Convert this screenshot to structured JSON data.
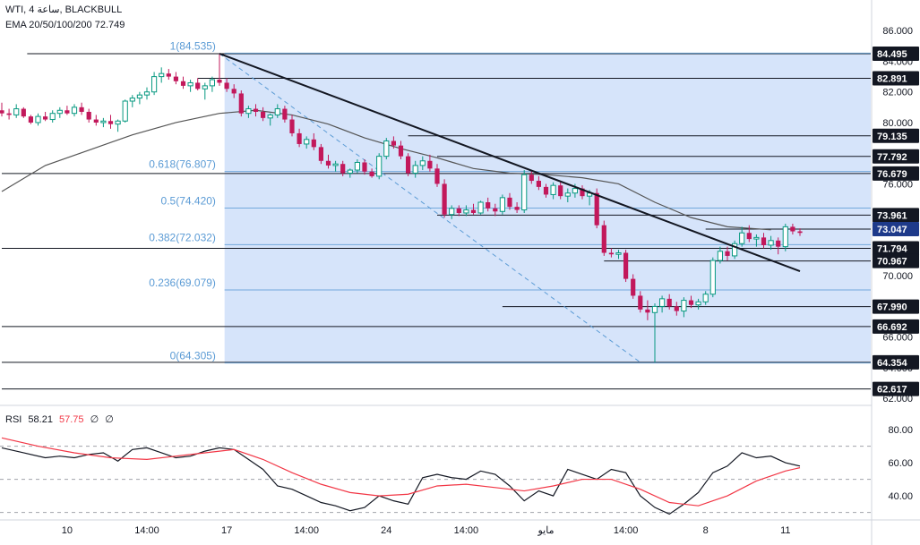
{
  "header": {
    "symbol": "WTI",
    "interval": "4",
    "interval_unit": "ساعة",
    "broker": "BLACKBULL",
    "ema_label": "EMA 20/50/100/200",
    "ema_value": "72.749"
  },
  "rsi_header": {
    "label": "RSI",
    "value1": "58.21",
    "value2": "57.75",
    "value3": "∅",
    "value4": "∅"
  },
  "colors": {
    "up": "#089981",
    "down": "#c2185b",
    "fib_zone": "#d6e4fa",
    "fib_text": "#5b9bd5",
    "trendline": "#131722",
    "ema": "#555555",
    "rsi_line": "#131722",
    "rsi_signal": "#f23645",
    "grid_label": "#131722"
  },
  "chart_data": [
    {
      "type": "candlestick",
      "title": "",
      "ylim": [
        61.6,
        88.0
      ],
      "price_ticks": [
        "86.000",
        "84.000",
        "82.000",
        "80.000",
        "78.000",
        "76.000",
        "74.000",
        "72.000",
        "70.000",
        "68.000",
        "66.000",
        "64.000",
        "62.000"
      ],
      "x_ticks": [
        {
          "label": "10",
          "t": 9
        },
        {
          "label": "14:00",
          "t": 20
        },
        {
          "label": "17",
          "t": 31
        },
        {
          "label": "14:00",
          "t": 42
        },
        {
          "label": "24",
          "t": 53
        },
        {
          "label": "14:00",
          "t": 64
        },
        {
          "label": "مايو",
          "t": 75
        },
        {
          "label": "14:00",
          "t": 86
        },
        {
          "label": "8",
          "t": 97
        },
        {
          "label": "11",
          "t": 108
        }
      ],
      "price_levels": [
        {
          "value": 84.495,
          "label": "84.495"
        },
        {
          "value": 82.891,
          "label": "82.891"
        },
        {
          "value": 79.135,
          "label": "79.135"
        },
        {
          "value": 77.792,
          "label": "77.792"
        },
        {
          "value": 76.679,
          "label": "76.679"
        },
        {
          "value": 73.961,
          "label": "73.961"
        },
        {
          "value": 73.047,
          "label": "73.047",
          "highlight": true
        },
        {
          "value": 71.794,
          "label": "71.794"
        },
        {
          "value": 70.967,
          "label": "70.967"
        },
        {
          "value": 67.99,
          "label": "67.990"
        },
        {
          "value": 66.692,
          "label": "66.692"
        },
        {
          "value": 64.354,
          "label": "64.354"
        },
        {
          "value": 62.617,
          "label": "62.617"
        }
      ],
      "fibonacci": [
        {
          "ratio": "1",
          "price": 84.535,
          "label": "1(84.535)"
        },
        {
          "ratio": "0.618",
          "price": 76.807,
          "label": "0.618(76.807)"
        },
        {
          "ratio": "0.5",
          "price": 74.42,
          "label": "0.5(74.420)"
        },
        {
          "ratio": "0.382",
          "price": 72.032,
          "label": "0.382(72.032)"
        },
        {
          "ratio": "0.236",
          "price": 69.079,
          "label": "0.236(69.079)"
        },
        {
          "ratio": "0",
          "price": 64.305,
          "label": "0(64.305)"
        }
      ],
      "trendline": {
        "from": {
          "t": 30,
          "price": 84.5
        },
        "to": {
          "t": 110,
          "price": 70.3
        }
      },
      "fib_diagonal": {
        "from": {
          "t": 30,
          "price": 84.5
        },
        "to": {
          "t": 88,
          "price": 64.35
        }
      },
      "ema_series": [
        [
          0,
          75.5
        ],
        [
          6,
          77.2
        ],
        [
          12,
          78.2
        ],
        [
          18,
          79.2
        ],
        [
          24,
          80.0
        ],
        [
          30,
          80.6
        ],
        [
          35,
          80.8
        ],
        [
          40,
          80.5
        ],
        [
          45,
          79.9
        ],
        [
          50,
          79.0
        ],
        [
          55,
          78.3
        ],
        [
          60,
          77.7
        ],
        [
          65,
          77.0
        ],
        [
          70,
          76.7
        ],
        [
          75,
          76.6
        ],
        [
          80,
          76.4
        ],
        [
          85,
          76.0
        ],
        [
          90,
          74.8
        ],
        [
          95,
          73.8
        ],
        [
          100,
          73.2
        ],
        [
          106,
          73.0
        ]
      ],
      "candles": [
        [
          80.8,
          81.3,
          80.4,
          80.6
        ],
        [
          80.6,
          80.9,
          80.2,
          80.5
        ],
        [
          80.5,
          81.2,
          80.3,
          80.9
        ],
        [
          80.9,
          81.0,
          80.3,
          80.4
        ],
        [
          80.4,
          80.5,
          79.9,
          80.0
        ],
        [
          80.0,
          80.6,
          79.8,
          80.4
        ],
        [
          80.4,
          80.7,
          80.1,
          80.2
        ],
        [
          80.2,
          80.8,
          80.0,
          80.6
        ],
        [
          80.6,
          81.0,
          80.3,
          80.8
        ],
        [
          80.8,
          81.1,
          80.5,
          80.6
        ],
        [
          80.6,
          81.2,
          80.4,
          81.0
        ],
        [
          81.0,
          81.3,
          80.5,
          80.7
        ],
        [
          80.7,
          80.9,
          80.0,
          80.2
        ],
        [
          80.2,
          80.5,
          79.8,
          80.0
        ],
        [
          80.0,
          80.3,
          79.7,
          80.1
        ],
        [
          80.1,
          80.5,
          79.6,
          79.9
        ],
        [
          79.9,
          80.2,
          79.4,
          80.1
        ],
        [
          80.1,
          81.5,
          80.0,
          81.4
        ],
        [
          81.4,
          81.8,
          81.0,
          81.6
        ],
        [
          81.6,
          82.0,
          81.2,
          81.8
        ],
        [
          81.8,
          82.3,
          81.5,
          82.0
        ],
        [
          82.0,
          83.3,
          81.8,
          83.0
        ],
        [
          83.0,
          83.6,
          82.6,
          83.2
        ],
        [
          83.2,
          83.5,
          82.8,
          83.0
        ],
        [
          83.0,
          83.3,
          82.5,
          82.7
        ],
        [
          82.7,
          83.0,
          82.2,
          82.4
        ],
        [
          82.4,
          82.8,
          82.0,
          82.6
        ],
        [
          82.6,
          82.9,
          82.1,
          82.2
        ],
        [
          82.2,
          82.6,
          81.5,
          82.4
        ],
        [
          82.4,
          83.0,
          82.0,
          82.8
        ],
        [
          82.8,
          84.5,
          82.4,
          82.6
        ],
        [
          82.6,
          82.9,
          82.0,
          82.2
        ],
        [
          82.2,
          82.5,
          81.6,
          81.9
        ],
        [
          81.9,
          82.1,
          80.4,
          80.6
        ],
        [
          80.6,
          81.1,
          80.3,
          80.9
        ],
        [
          80.9,
          81.2,
          80.4,
          80.7
        ],
        [
          80.7,
          81.0,
          80.1,
          80.3
        ],
        [
          80.3,
          80.6,
          79.8,
          80.5
        ],
        [
          80.5,
          81.2,
          80.3,
          80.9
        ],
        [
          80.9,
          81.1,
          80.0,
          80.2
        ],
        [
          80.2,
          80.5,
          79.1,
          79.3
        ],
        [
          79.3,
          79.6,
          78.4,
          78.6
        ],
        [
          78.6,
          79.1,
          78.3,
          78.9
        ],
        [
          78.9,
          79.3,
          78.2,
          78.4
        ],
        [
          78.4,
          78.6,
          77.3,
          77.5
        ],
        [
          77.5,
          77.9,
          77.0,
          77.2
        ],
        [
          77.2,
          77.5,
          76.8,
          77.3
        ],
        [
          77.3,
          77.5,
          76.5,
          76.7
        ],
        [
          76.7,
          77.0,
          76.4,
          76.9
        ],
        [
          76.9,
          77.6,
          76.7,
          77.4
        ],
        [
          77.4,
          77.6,
          76.6,
          76.8
        ],
        [
          76.8,
          77.0,
          76.4,
          76.5
        ],
        [
          76.5,
          78.0,
          76.3,
          77.8
        ],
        [
          77.8,
          79.0,
          77.6,
          78.8
        ],
        [
          78.8,
          79.1,
          78.3,
          78.5
        ],
        [
          78.5,
          78.8,
          77.6,
          77.8
        ],
        [
          77.8,
          78.0,
          76.5,
          76.7
        ],
        [
          76.7,
          77.5,
          76.4,
          77.2
        ],
        [
          77.2,
          77.8,
          76.9,
          77.5
        ],
        [
          77.5,
          77.9,
          76.8,
          77.0
        ],
        [
          77.0,
          77.3,
          75.8,
          76.0
        ],
        [
          76.0,
          76.3,
          73.8,
          74.0
        ],
        [
          74.0,
          74.6,
          73.7,
          74.4
        ],
        [
          74.4,
          74.6,
          73.9,
          74.1
        ],
        [
          74.1,
          74.6,
          73.9,
          74.3
        ],
        [
          74.3,
          74.7,
          74.0,
          74.1
        ],
        [
          74.1,
          74.9,
          74.0,
          74.8
        ],
        [
          74.8,
          75.1,
          74.2,
          74.4
        ],
        [
          74.4,
          74.7,
          73.9,
          74.2
        ],
        [
          74.2,
          75.3,
          74.0,
          75.1
        ],
        [
          75.1,
          75.4,
          74.3,
          74.5
        ],
        [
          74.5,
          74.8,
          74.1,
          74.3
        ],
        [
          74.3,
          76.9,
          74.1,
          76.6
        ],
        [
          76.6,
          76.9,
          76.0,
          76.2
        ],
        [
          76.2,
          76.5,
          75.6,
          75.8
        ],
        [
          75.8,
          76.0,
          75.1,
          75.3
        ],
        [
          75.3,
          76.1,
          75.0,
          75.9
        ],
        [
          75.9,
          76.2,
          75.0,
          75.2
        ],
        [
          75.2,
          75.7,
          74.8,
          75.4
        ],
        [
          75.4,
          76.0,
          75.1,
          75.7
        ],
        [
          75.7,
          75.9,
          75.0,
          75.2
        ],
        [
          75.2,
          75.6,
          74.6,
          75.4
        ],
        [
          75.4,
          75.7,
          73.1,
          73.3
        ],
        [
          73.3,
          73.6,
          71.3,
          71.5
        ],
        [
          71.5,
          71.8,
          71.2,
          71.4
        ],
        [
          71.4,
          71.7,
          71.1,
          71.5
        ],
        [
          71.5,
          71.7,
          69.6,
          69.8
        ],
        [
          69.8,
          70.1,
          68.5,
          68.7
        ],
        [
          68.7,
          69.0,
          67.6,
          67.8
        ],
        [
          67.8,
          68.4,
          67.1,
          67.6
        ],
        [
          67.6,
          68.2,
          64.35,
          68.0
        ],
        [
          68.0,
          68.7,
          67.6,
          68.5
        ],
        [
          68.5,
          68.8,
          67.8,
          68.0
        ],
        [
          68.0,
          68.3,
          67.4,
          67.7
        ],
        [
          67.7,
          68.6,
          67.3,
          68.4
        ],
        [
          68.4,
          68.7,
          67.9,
          68.1
        ],
        [
          68.1,
          68.5,
          67.8,
          68.3
        ],
        [
          68.3,
          69.0,
          68.1,
          68.8
        ],
        [
          68.8,
          71.2,
          68.6,
          71.0
        ],
        [
          71.0,
          71.9,
          70.8,
          71.6
        ],
        [
          71.6,
          71.9,
          71.0,
          71.3
        ],
        [
          71.3,
          72.3,
          71.1,
          72.1
        ],
        [
          72.1,
          73.2,
          71.9,
          72.8
        ],
        [
          72.8,
          73.3,
          72.2,
          72.4
        ],
        [
          72.4,
          72.7,
          71.9,
          72.5
        ],
        [
          72.5,
          72.8,
          71.8,
          72.0
        ],
        [
          72.0,
          72.6,
          71.7,
          72.3
        ],
        [
          72.3,
          72.5,
          71.4,
          71.9
        ],
        [
          71.9,
          73.4,
          71.6,
          73.2
        ],
        [
          73.2,
          73.4,
          72.7,
          72.9
        ],
        [
          72.9,
          73.1,
          72.6,
          72.8
        ]
      ]
    },
    {
      "type": "line",
      "title": "",
      "ylim": [
        26,
        93
      ],
      "y_ticks": [
        "80.00",
        "60.00",
        "40.00"
      ],
      "levels": [
        70,
        50,
        30
      ],
      "series": [
        {
          "name": "",
          "color": "#131722",
          "values": [
            [
              0,
              69
            ],
            [
              3,
              66
            ],
            [
              6,
              63
            ],
            [
              8,
              64
            ],
            [
              10,
              63
            ],
            [
              12,
              65
            ],
            [
              14,
              66
            ],
            [
              16,
              61
            ],
            [
              18,
              68
            ],
            [
              20,
              69
            ],
            [
              22,
              66
            ],
            [
              24,
              63
            ],
            [
              26,
              64
            ],
            [
              28,
              67
            ],
            [
              30,
              69
            ],
            [
              32,
              68
            ],
            [
              34,
              62
            ],
            [
              36,
              56
            ],
            [
              38,
              46
            ],
            [
              40,
              44
            ],
            [
              42,
              40
            ],
            [
              44,
              36
            ],
            [
              46,
              34
            ],
            [
              48,
              31
            ],
            [
              50,
              33
            ],
            [
              52,
              40
            ],
            [
              54,
              37
            ],
            [
              56,
              35
            ],
            [
              58,
              51
            ],
            [
              60,
              53
            ],
            [
              62,
              51
            ],
            [
              64,
              50
            ],
            [
              66,
              55
            ],
            [
              68,
              53
            ],
            [
              70,
              46
            ],
            [
              72,
              37
            ],
            [
              74,
              43
            ],
            [
              76,
              40
            ],
            [
              78,
              56
            ],
            [
              80,
              53
            ],
            [
              82,
              50
            ],
            [
              84,
              56
            ],
            [
              86,
              54
            ],
            [
              88,
              40
            ],
            [
              90,
              33
            ],
            [
              92,
              29
            ],
            [
              94,
              35
            ],
            [
              96,
              42
            ],
            [
              98,
              54
            ],
            [
              100,
              58
            ],
            [
              102,
              66
            ],
            [
              104,
              63
            ],
            [
              106,
              64
            ],
            [
              108,
              60
            ],
            [
              110,
              58
            ]
          ]
        },
        {
          "name": "",
          "color": "#f23645",
          "values": [
            [
              0,
              75
            ],
            [
              5,
              70
            ],
            [
              10,
              66
            ],
            [
              15,
              63
            ],
            [
              20,
              62
            ],
            [
              24,
              64
            ],
            [
              28,
              66
            ],
            [
              32,
              68
            ],
            [
              36,
              62
            ],
            [
              40,
              54
            ],
            [
              44,
              47
            ],
            [
              48,
              42
            ],
            [
              52,
              40
            ],
            [
              56,
              41
            ],
            [
              60,
              46
            ],
            [
              64,
              47
            ],
            [
              68,
              45
            ],
            [
              72,
              43
            ],
            [
              76,
              46
            ],
            [
              80,
              50
            ],
            [
              84,
              50
            ],
            [
              88,
              44
            ],
            [
              92,
              36
            ],
            [
              96,
              34
            ],
            [
              100,
              40
            ],
            [
              104,
              49
            ],
            [
              108,
              55
            ],
            [
              110,
              57
            ]
          ]
        }
      ]
    }
  ]
}
